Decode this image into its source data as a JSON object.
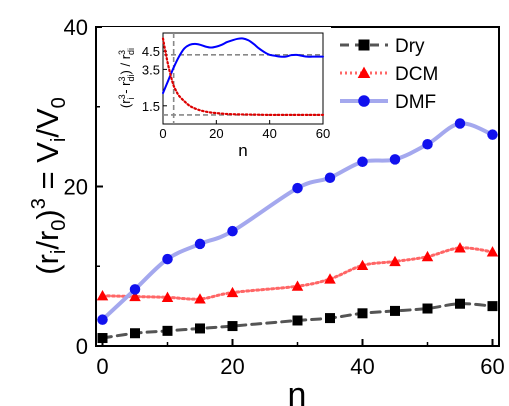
{
  "chart_data": [
    {
      "type": "line",
      "xlabel": "n",
      "ylabel": "(r_i/r_0)^3 = V_i/V_0",
      "xlim": [
        -1,
        61
      ],
      "ylim": [
        0,
        40
      ],
      "xticks": [
        0,
        20,
        40,
        60
      ],
      "yticks": [
        0,
        20,
        40
      ],
      "grid": false,
      "legend": "top-right",
      "series": [
        {
          "name": "Dry",
          "marker": "square",
          "line": "dashed",
          "color": "#555555",
          "marker_color": "#000000",
          "x": [
            0,
            5,
            10,
            15,
            20,
            30,
            35,
            40,
            45,
            50,
            55,
            60
          ],
          "y": [
            1.0,
            1.6,
            1.9,
            2.2,
            2.5,
            3.2,
            3.5,
            4.1,
            4.4,
            4.7,
            5.3,
            5.0
          ]
        },
        {
          "name": "DCM",
          "marker": "triangle",
          "line": "dotted",
          "color": "#ff6666",
          "marker_color": "#ff0000",
          "x": [
            0,
            5,
            10,
            15,
            20,
            30,
            35,
            40,
            45,
            50,
            55,
            60
          ],
          "y": [
            6.3,
            6.2,
            6.1,
            5.9,
            6.7,
            7.5,
            8.4,
            10.1,
            10.6,
            11.2,
            12.3,
            11.8
          ]
        },
        {
          "name": "DMF",
          "marker": "circle",
          "line": "solid",
          "color": "#a4a8ee",
          "marker_color": "#1111ee",
          "x": [
            0,
            5,
            10,
            15,
            20,
            30,
            35,
            40,
            45,
            50,
            55,
            60
          ],
          "y": [
            3.3,
            7.1,
            10.9,
            12.8,
            14.4,
            19.8,
            21.1,
            23.1,
            23.4,
            25.3,
            27.9,
            26.5
          ]
        }
      ]
    },
    {
      "type": "line",
      "xlabel": "n",
      "ylabel": "(r_i^3 - r_di^3) / r_di^3",
      "xlim": [
        0,
        60
      ],
      "ylim": [
        0.5,
        5.5
      ],
      "xticks": [
        0,
        20,
        40,
        60
      ],
      "yticks": [
        1.5,
        3.5,
        4.5
      ],
      "yticklabels": [
        "1.5",
        "3.5",
        "4.5"
      ],
      "reference_lines": [
        {
          "orientation": "horizontal",
          "value": 4.3,
          "style": "dashed",
          "color": "#888888"
        },
        {
          "orientation": "horizontal",
          "value": 1.0,
          "style": "dashed",
          "color": "#888888"
        },
        {
          "orientation": "vertical",
          "value": 4,
          "style": "dashed",
          "color": "#888888"
        }
      ],
      "series": [
        {
          "color": "#0000ff",
          "line": "solid",
          "x": [
            0,
            2,
            4,
            6,
            8,
            10,
            12,
            14,
            16,
            18,
            20,
            22,
            24,
            26,
            28,
            30,
            32,
            34,
            36,
            38,
            40,
            42,
            44,
            46,
            48,
            50,
            52,
            54,
            56,
            58,
            60
          ],
          "y": [
            2.2,
            2.9,
            3.6,
            4.2,
            4.65,
            4.85,
            4.9,
            4.85,
            4.75,
            4.7,
            4.75,
            4.85,
            5.0,
            5.1,
            5.18,
            5.2,
            5.1,
            4.9,
            4.65,
            4.45,
            4.3,
            4.25,
            4.2,
            4.2,
            4.28,
            4.3,
            4.25,
            4.2,
            4.2,
            4.2,
            4.2
          ]
        },
        {
          "color": "#dd0000",
          "line": "dotted",
          "x": [
            0,
            1,
            2,
            3,
            4,
            5,
            6,
            8,
            10,
            12,
            14,
            16,
            18,
            20,
            24,
            28,
            32,
            36,
            40,
            44,
            48,
            52,
            56,
            60
          ],
          "y": [
            5.2,
            4.4,
            3.7,
            3.1,
            2.6,
            2.3,
            2.05,
            1.75,
            1.5,
            1.35,
            1.25,
            1.18,
            1.13,
            1.1,
            1.05,
            1.03,
            1.02,
            1.01,
            1.0,
            1.0,
            1.0,
            1.0,
            1.0,
            1.0
          ]
        }
      ]
    }
  ]
}
